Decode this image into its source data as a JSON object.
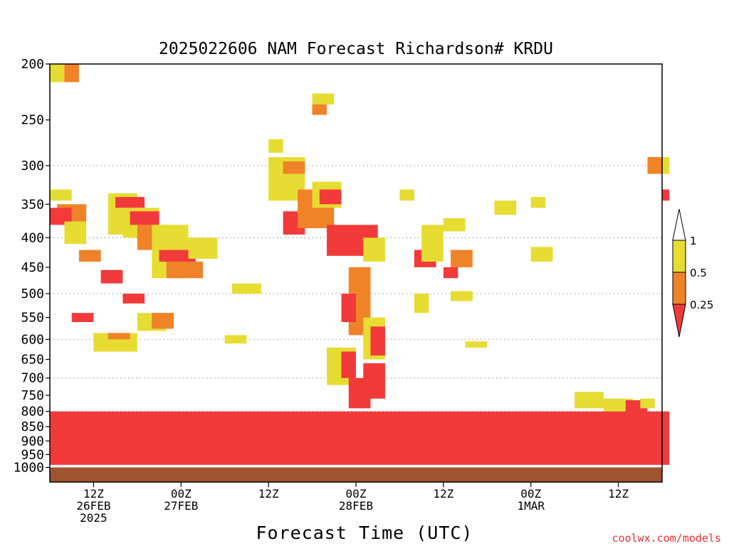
{
  "chart_data": {
    "type": "heatmap",
    "title": "2025022606 NAM Forecast Richardson# KRDU",
    "xlabel": "Forecast Time (UTC)",
    "ylabel": "",
    "credit": "coolwx.com/models",
    "y_axis": {
      "scale": "log-pressure",
      "unit": "hPa",
      "ylim": [
        1000,
        200
      ],
      "ticks": [
        200,
        250,
        300,
        350,
        400,
        450,
        500,
        550,
        600,
        650,
        700,
        750,
        800,
        850,
        900,
        950,
        1000
      ],
      "dotted_gridlines": [
        300,
        400,
        500,
        600,
        700,
        800,
        900
      ]
    },
    "x_axis": {
      "start": "2025-02-26 06Z",
      "end": "2025-03-01 18Z",
      "tick_labels": [
        {
          "time": "2025-02-26 12Z",
          "lines": [
            "12Z",
            "26FEB",
            "2025"
          ]
        },
        {
          "time": "2025-02-27 00Z",
          "lines": [
            "00Z",
            "27FEB"
          ]
        },
        {
          "time": "2025-02-27 12Z",
          "lines": [
            "12Z"
          ]
        },
        {
          "time": "2025-02-28 00Z",
          "lines": [
            "00Z",
            "28FEB"
          ]
        },
        {
          "time": "2025-02-28 12Z",
          "lines": [
            "12Z"
          ]
        },
        {
          "time": "2025-03-01 00Z",
          "lines": [
            "00Z",
            "1MAR"
          ]
        },
        {
          "time": "2025-03-01 12Z",
          "lines": [
            "12Z"
          ]
        }
      ]
    },
    "color_scale": {
      "labels": [
        "1",
        "0.5",
        "0.25"
      ],
      "bins": [
        {
          "range": "< 0.25",
          "color": "#f23a3a"
        },
        {
          "range": "0.25 - 0.5",
          "color": "#f08228"
        },
        {
          "range": "0.5 - 1",
          "color": "#e6dc32"
        },
        {
          "range": "> 1",
          "color": "#ffffff"
        }
      ]
    },
    "ground_color": "#a0522d",
    "regions": [
      {
        "time": [
          "2025-02-26 06Z",
          "2025-02-26 07Z"
        ],
        "hPa": [
          200,
          215
        ],
        "bin": "0.5 - 1"
      },
      {
        "time": [
          "2025-02-26 08Z",
          "2025-02-26 09Z"
        ],
        "hPa": [
          200,
          215
        ],
        "bin": "0.25 - 0.5"
      },
      {
        "time": [
          "2025-02-26 06Z",
          "2025-02-26 08Z"
        ],
        "hPa": [
          330,
          345
        ],
        "bin": "0.5 - 1"
      },
      {
        "time": [
          "2025-02-26 07Z",
          "2025-02-26 10Z"
        ],
        "hPa": [
          350,
          375
        ],
        "bin": "0.25 - 0.5"
      },
      {
        "time": [
          "2025-02-26 06Z",
          "2025-02-26 08Z"
        ],
        "hPa": [
          355,
          380
        ],
        "bin": "< 0.25"
      },
      {
        "time": [
          "2025-02-26 08Z",
          "2025-02-26 10Z"
        ],
        "hPa": [
          375,
          410
        ],
        "bin": "0.5 - 1"
      },
      {
        "time": [
          "2025-02-26 14Z",
          "2025-02-26 17Z"
        ],
        "hPa": [
          335,
          395
        ],
        "bin": "0.5 - 1"
      },
      {
        "time": [
          "2025-02-26 15Z",
          "2025-02-26 18Z"
        ],
        "hPa": [
          340,
          355
        ],
        "bin": "< 0.25"
      },
      {
        "time": [
          "2025-02-26 16Z",
          "2025-02-26 20Z"
        ],
        "hPa": [
          355,
          400
        ],
        "bin": "0.5 - 1"
      },
      {
        "time": [
          "2025-02-26 17Z",
          "2025-02-26 20Z"
        ],
        "hPa": [
          360,
          380
        ],
        "bin": "< 0.25"
      },
      {
        "time": [
          "2025-02-26 18Z",
          "2025-02-26 21Z"
        ],
        "hPa": [
          380,
          420
        ],
        "bin": "0.25 - 0.5"
      },
      {
        "time": [
          "2025-02-26 10Z",
          "2025-02-26 12Z"
        ],
        "hPa": [
          420,
          440
        ],
        "bin": "0.25 - 0.5"
      },
      {
        "time": [
          "2025-02-26 13Z",
          "2025-02-26 15Z"
        ],
        "hPa": [
          455,
          480
        ],
        "bin": "< 0.25"
      },
      {
        "time": [
          "2025-02-26 20Z",
          "2025-02-27 00Z"
        ],
        "hPa": [
          380,
          470
        ],
        "bin": "0.5 - 1"
      },
      {
        "time": [
          "2025-02-26 21Z",
          "2025-02-27 01Z"
        ],
        "hPa": [
          420,
          440
        ],
        "bin": "< 0.25"
      },
      {
        "time": [
          "2025-02-26 22Z",
          "2025-02-27 02Z"
        ],
        "hPa": [
          440,
          470
        ],
        "bin": "0.25 - 0.5"
      },
      {
        "time": [
          "2025-02-27 01Z",
          "2025-02-27 04Z"
        ],
        "hPa": [
          400,
          435
        ],
        "bin": "0.5 - 1"
      },
      {
        "time": [
          "2025-02-26 16Z",
          "2025-02-26 18Z"
        ],
        "hPa": [
          500,
          520
        ],
        "bin": "< 0.25"
      },
      {
        "time": [
          "2025-02-26 18Z",
          "2025-02-26 21Z"
        ],
        "hPa": [
          540,
          580
        ],
        "bin": "0.5 - 1"
      },
      {
        "time": [
          "2025-02-26 20Z",
          "2025-02-26 22Z"
        ],
        "hPa": [
          540,
          575
        ],
        "bin": "0.25 - 0.5"
      },
      {
        "time": [
          "2025-02-26 09Z",
          "2025-02-26 11Z"
        ],
        "hPa": [
          540,
          560
        ],
        "bin": "< 0.25"
      },
      {
        "time": [
          "2025-02-26 12Z",
          "2025-02-26 17Z"
        ],
        "hPa": [
          585,
          630
        ],
        "bin": "0.5 - 1"
      },
      {
        "time": [
          "2025-02-26 14Z",
          "2025-02-26 16Z"
        ],
        "hPa": [
          585,
          600
        ],
        "bin": "0.25 - 0.5"
      },
      {
        "time": [
          "2025-02-27 07Z",
          "2025-02-27 10Z"
        ],
        "hPa": [
          480,
          500
        ],
        "bin": "0.5 - 1"
      },
      {
        "time": [
          "2025-02-27 06Z",
          "2025-02-27 08Z"
        ],
        "hPa": [
          590,
          610
        ],
        "bin": "0.5 - 1"
      },
      {
        "time": [
          "2025-02-27 12Z",
          "2025-02-27 13Z"
        ],
        "hPa": [
          270,
          285
        ],
        "bin": "0.5 - 1"
      },
      {
        "time": [
          "2025-02-27 12Z",
          "2025-02-27 16Z"
        ],
        "hPa": [
          290,
          345
        ],
        "bin": "0.5 - 1"
      },
      {
        "time": [
          "2025-02-27 14Z",
          "2025-02-27 16Z"
        ],
        "hPa": [
          295,
          310
        ],
        "bin": "0.25 - 0.5"
      },
      {
        "time": [
          "2025-02-27 14Z",
          "2025-02-27 16Z"
        ],
        "hPa": [
          360,
          395
        ],
        "bin": "< 0.25"
      },
      {
        "time": [
          "2025-02-27 16Z",
          "2025-02-27 20Z"
        ],
        "hPa": [
          330,
          385
        ],
        "bin": "0.25 - 0.5"
      },
      {
        "time": [
          "2025-02-27 18Z",
          "2025-02-27 20Z"
        ],
        "hPa": [
          225,
          235
        ],
        "bin": "0.5 - 1"
      },
      {
        "time": [
          "2025-02-27 18Z",
          "2025-02-27 19Z"
        ],
        "hPa": [
          235,
          245
        ],
        "bin": "0.25 - 0.5"
      },
      {
        "time": [
          "2025-02-27 18Z",
          "2025-02-27 21Z"
        ],
        "hPa": [
          320,
          355
        ],
        "bin": "0.5 - 1"
      },
      {
        "time": [
          "2025-02-27 19Z",
          "2025-02-27 21Z"
        ],
        "hPa": [
          330,
          350
        ],
        "bin": "< 0.25"
      },
      {
        "time": [
          "2025-02-27 20Z",
          "2025-02-28 02Z"
        ],
        "hPa": [
          380,
          430
        ],
        "bin": "< 0.25"
      },
      {
        "time": [
          "2025-02-28 01Z",
          "2025-02-28 03Z"
        ],
        "hPa": [
          400,
          440
        ],
        "bin": "0.5 - 1"
      },
      {
        "time": [
          "2025-02-27 23Z",
          "2025-02-28 01Z"
        ],
        "hPa": [
          450,
          590
        ],
        "bin": "0.25 - 0.5"
      },
      {
        "time": [
          "2025-02-27 22Z",
          "2025-02-27 23Z"
        ],
        "hPa": [
          500,
          560
        ],
        "bin": "< 0.25"
      },
      {
        "time": [
          "2025-02-28 01Z",
          "2025-02-28 03Z"
        ],
        "hPa": [
          550,
          650
        ],
        "bin": "0.5 - 1"
      },
      {
        "time": [
          "2025-02-28 02Z",
          "2025-02-28 03Z"
        ],
        "hPa": [
          570,
          640
        ],
        "bin": "< 0.25"
      },
      {
        "time": [
          "2025-02-27 20Z",
          "2025-02-27 23Z"
        ],
        "hPa": [
          620,
          720
        ],
        "bin": "0.5 - 1"
      },
      {
        "time": [
          "2025-02-27 22Z",
          "2025-02-27 23Z"
        ],
        "hPa": [
          630,
          700
        ],
        "bin": "< 0.25"
      },
      {
        "time": [
          "2025-02-27 23Z",
          "2025-02-28 01Z"
        ],
        "hPa": [
          700,
          790
        ],
        "bin": "< 0.25"
      },
      {
        "time": [
          "2025-02-28 01Z",
          "2025-02-28 03Z"
        ],
        "hPa": [
          660,
          760
        ],
        "bin": "< 0.25"
      },
      {
        "time": [
          "2025-02-28 08Z",
          "2025-02-28 10Z"
        ],
        "hPa": [
          420,
          450
        ],
        "bin": "< 0.25"
      },
      {
        "time": [
          "2025-02-28 09Z",
          "2025-02-28 11Z"
        ],
        "hPa": [
          380,
          440
        ],
        "bin": "0.5 - 1"
      },
      {
        "time": [
          "2025-02-28 13Z",
          "2025-02-28 15Z"
        ],
        "hPa": [
          420,
          450
        ],
        "bin": "0.25 - 0.5"
      },
      {
        "time": [
          "2025-02-28 12Z",
          "2025-02-28 14Z"
        ],
        "hPa": [
          370,
          390
        ],
        "bin": "0.5 - 1"
      },
      {
        "time": [
          "2025-02-28 08Z",
          "2025-02-28 09Z"
        ],
        "hPa": [
          500,
          540
        ],
        "bin": "0.5 - 1"
      },
      {
        "time": [
          "2025-02-28 12Z",
          "2025-02-28 13Z"
        ],
        "hPa": [
          450,
          470
        ],
        "bin": "< 0.25"
      },
      {
        "time": [
          "2025-02-28 13Z",
          "2025-02-28 15Z"
        ],
        "hPa": [
          495,
          515
        ],
        "bin": "0.5 - 1"
      },
      {
        "time": [
          "2025-02-28 06Z",
          "2025-02-28 07Z"
        ],
        "hPa": [
          330,
          345
        ],
        "bin": "0.5 - 1"
      },
      {
        "time": [
          "2025-03-01 00Z",
          "2025-03-01 01Z"
        ],
        "hPa": [
          340,
          355
        ],
        "bin": "0.5 - 1"
      },
      {
        "time": [
          "2025-03-01 00Z",
          "2025-03-01 02Z"
        ],
        "hPa": [
          415,
          440
        ],
        "bin": "0.5 - 1"
      },
      {
        "time": [
          "2025-02-28 19Z",
          "2025-02-28 21Z"
        ],
        "hPa": [
          345,
          365
        ],
        "bin": "0.5 - 1"
      },
      {
        "time": [
          "2025-02-28 15Z",
          "2025-02-28 17Z"
        ],
        "hPa": [
          605,
          620
        ],
        "bin": "0.5 - 1"
      },
      {
        "time": [
          "2025-03-01 06Z",
          "2025-03-01 09Z"
        ],
        "hPa": [
          740,
          790
        ],
        "bin": "0.5 - 1"
      },
      {
        "time": [
          "2025-03-01 10Z",
          "2025-03-01 13Z"
        ],
        "hPa": [
          760,
          800
        ],
        "bin": "0.5 - 1"
      },
      {
        "time": [
          "2025-03-01 13Z",
          "2025-03-01 15Z"
        ],
        "hPa": [
          765,
          810
        ],
        "bin": "< 0.25"
      },
      {
        "time": [
          "2025-03-01 15Z",
          "2025-03-01 16Z"
        ],
        "hPa": [
          760,
          790
        ],
        "bin": "0.5 - 1"
      },
      {
        "time": [
          "2025-03-01 17Z",
          "2025-03-01 18Z"
        ],
        "hPa": [
          290,
          310
        ],
        "bin": "0.5 - 1"
      },
      {
        "time": [
          "2025-03-01 16Z",
          "2025-03-01 17Z"
        ],
        "hPa": [
          290,
          310
        ],
        "bin": "0.25 - 0.5"
      },
      {
        "time": [
          "2025-03-01 18Z",
          "2025-03-01 18Z"
        ],
        "hPa": [
          330,
          345
        ],
        "bin": "< 0.25"
      },
      {
        "time": [
          "2025-02-26 06Z",
          "2025-03-01 18Z"
        ],
        "hPa": [
          800,
          990
        ],
        "bin": "< 0.25",
        "note": "boundary layer, thickest 26FEB 06Z-27FEB 03Z and 28FEB-1MAR"
      }
    ]
  }
}
